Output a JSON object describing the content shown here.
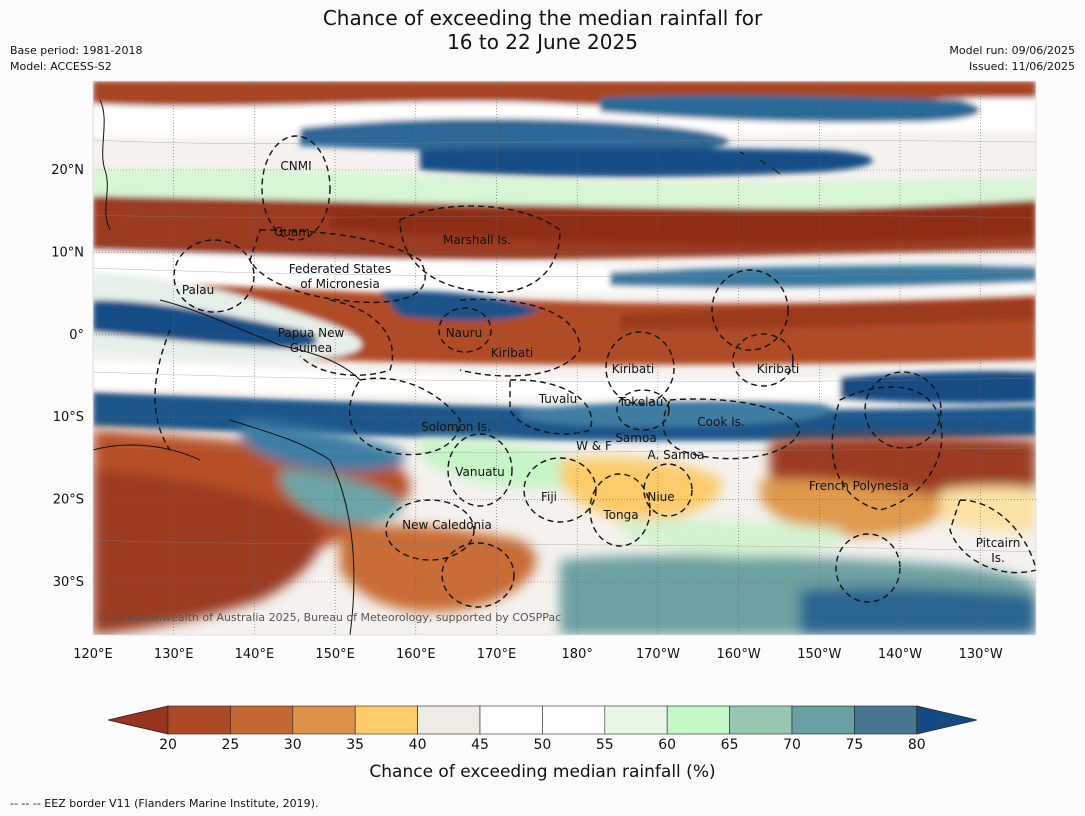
{
  "title_line1": "Chance of exceeding the median rainfall for",
  "title_line2": "16 to 22 June 2025",
  "meta_left": {
    "base_period": "Base period: 1981-2018",
    "model": "Model: ACCESS-S2"
  },
  "meta_right": {
    "model_run": "Model run: 09/06/2025",
    "issued": "Issued: 11/06/2025"
  },
  "copyright": "© Commonwealth of Australia 2025, Bureau of Meteorology, supported by COSPPac",
  "lon_labels": [
    "120°E",
    "130°E",
    "140°E",
    "150°E",
    "160°E",
    "170°E",
    "180°",
    "170°W",
    "160°W",
    "150°W",
    "140°W",
    "130°W"
  ],
  "lat_labels": [
    "20°N",
    "10°N",
    "0°",
    "10°S",
    "20°S",
    "30°S"
  ],
  "places": [
    {
      "name": "CNMI"
    },
    {
      "name": "Guam"
    },
    {
      "name": "Marshall Is."
    },
    {
      "name": "Federated States"
    },
    {
      "name": "of Micronesia"
    },
    {
      "name": "Palau"
    },
    {
      "name": "Nauru"
    },
    {
      "name": "Papua New"
    },
    {
      "name": "Guinea"
    },
    {
      "name": "Kiribati"
    },
    {
      "name": "Kiribati"
    },
    {
      "name": "Kiribati"
    },
    {
      "name": "Tuvalu"
    },
    {
      "name": "Tokelau"
    },
    {
      "name": "Cook Is."
    },
    {
      "name": "Solomon Is."
    },
    {
      "name": "Samoa"
    },
    {
      "name": "W & F"
    },
    {
      "name": "A. Samoa"
    },
    {
      "name": "Vanuatu"
    },
    {
      "name": "Fiji"
    },
    {
      "name": "Niue"
    },
    {
      "name": "French Polynesia"
    },
    {
      "name": "Tonga"
    },
    {
      "name": "New Caledonia"
    },
    {
      "name": "Pitcairn"
    },
    {
      "name": "Is."
    }
  ],
  "colorbar": {
    "title": "Chance of exceeding median rainfall (%)",
    "ticks": [
      "20",
      "25",
      "30",
      "35",
      "40",
      "45",
      "50",
      "55",
      "60",
      "65",
      "70",
      "75",
      "80"
    ],
    "colors": [
      "#973520",
      "#ad4a26",
      "#c36832",
      "#de9148",
      "#fccb6a",
      "#eeebe6",
      "#ffffff",
      "#ffffff",
      "#e7f6e5",
      "#c6f9c8",
      "#97c7b1",
      "#69a1a3",
      "#45758f",
      "#144a82"
    ]
  },
  "footnote": "--  --  -- EEZ border V11 (Flanders Marine Institute, 2019)."
}
